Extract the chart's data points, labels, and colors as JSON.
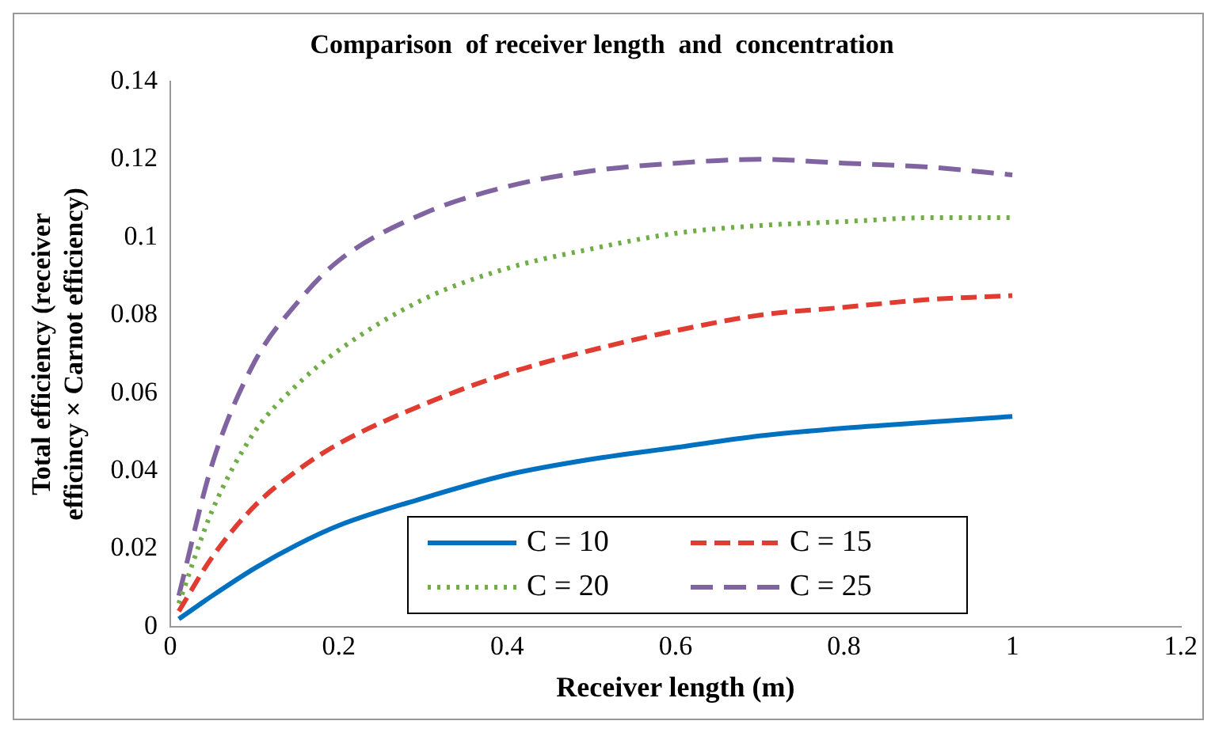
{
  "chart_data": {
    "type": "line",
    "title": "Comparison  of receiver length  and  concentration",
    "xlabel": "Receiver length (m)",
    "ylabel": "Total efficiency (receiver\nefficincy × Carnot efficiency)",
    "x": [
      0.01,
      0.05,
      0.1,
      0.15,
      0.2,
      0.3,
      0.4,
      0.5,
      0.6,
      0.7,
      0.8,
      0.9,
      1.0
    ],
    "series": [
      {
        "name": "C = 10",
        "color": "#0070c0",
        "line_style": "solid",
        "values": [
          0.002,
          0.008,
          0.015,
          0.021,
          0.026,
          0.033,
          0.039,
          0.043,
          0.046,
          0.049,
          0.051,
          0.0525,
          0.054
        ]
      },
      {
        "name": "C = 15",
        "color": "#e03c31",
        "line_style": "dashed",
        "values": [
          0.004,
          0.018,
          0.031,
          0.04,
          0.047,
          0.057,
          0.065,
          0.071,
          0.076,
          0.08,
          0.082,
          0.084,
          0.085
        ]
      },
      {
        "name": "C = 20",
        "color": "#70ad47",
        "line_style": "dotted",
        "values": [
          0.006,
          0.03,
          0.05,
          0.062,
          0.071,
          0.084,
          0.092,
          0.097,
          0.101,
          0.103,
          0.104,
          0.105,
          0.105
        ]
      },
      {
        "name": "C = 25",
        "color": "#8064a2",
        "line_style": "dashed",
        "values": [
          0.008,
          0.042,
          0.068,
          0.083,
          0.094,
          0.106,
          0.113,
          0.117,
          0.119,
          0.12,
          0.119,
          0.118,
          0.116
        ]
      }
    ],
    "xlim": [
      0,
      1.2
    ],
    "xticks": [
      0,
      0.2,
      0.4,
      0.6,
      0.8,
      1,
      1.2
    ],
    "ylim": [
      0,
      0.14
    ],
    "yticks": [
      0,
      0.02,
      0.04,
      0.06,
      0.08,
      0.1,
      0.12,
      0.14
    ],
    "grid": false,
    "legend": "bottom",
    "marker": "none"
  }
}
